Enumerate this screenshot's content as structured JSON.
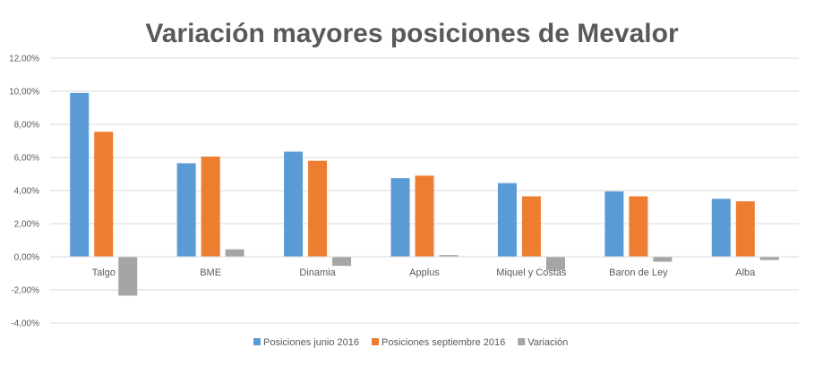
{
  "chart_data": {
    "type": "bar",
    "title": "Variación mayores posiciones de Mevalor",
    "categories": [
      "Talgo",
      "BME",
      "Dinamia",
      "Applus",
      "Miquel y Costas",
      "Baron de Ley",
      "Alba"
    ],
    "series": [
      {
        "name": "Posiciones junio 2016",
        "color": "#5B9BD5",
        "values": [
          9.9,
          5.65,
          6.35,
          4.75,
          4.45,
          3.95,
          3.5
        ]
      },
      {
        "name": "Posiciones septiembre 2016",
        "color": "#ED7D31",
        "values": [
          7.55,
          6.05,
          5.8,
          4.9,
          3.65,
          3.65,
          3.35
        ]
      },
      {
        "name": "Variación",
        "color": "#A5A5A5",
        "values": [
          -2.35,
          0.45,
          -0.55,
          0.1,
          -0.8,
          -0.3,
          -0.2
        ]
      }
    ],
    "ylim": [
      -4,
      12
    ],
    "yticks": [
      -4,
      -2,
      0,
      2,
      4,
      6,
      8,
      10,
      12
    ],
    "ytick_labels": [
      "-4,00%",
      "-2,00%",
      "0,00%",
      "2,00%",
      "4,00%",
      "6,00%",
      "8,00%",
      "10,00%",
      "12,00%"
    ],
    "grid": true,
    "legend_position": "bottom"
  }
}
